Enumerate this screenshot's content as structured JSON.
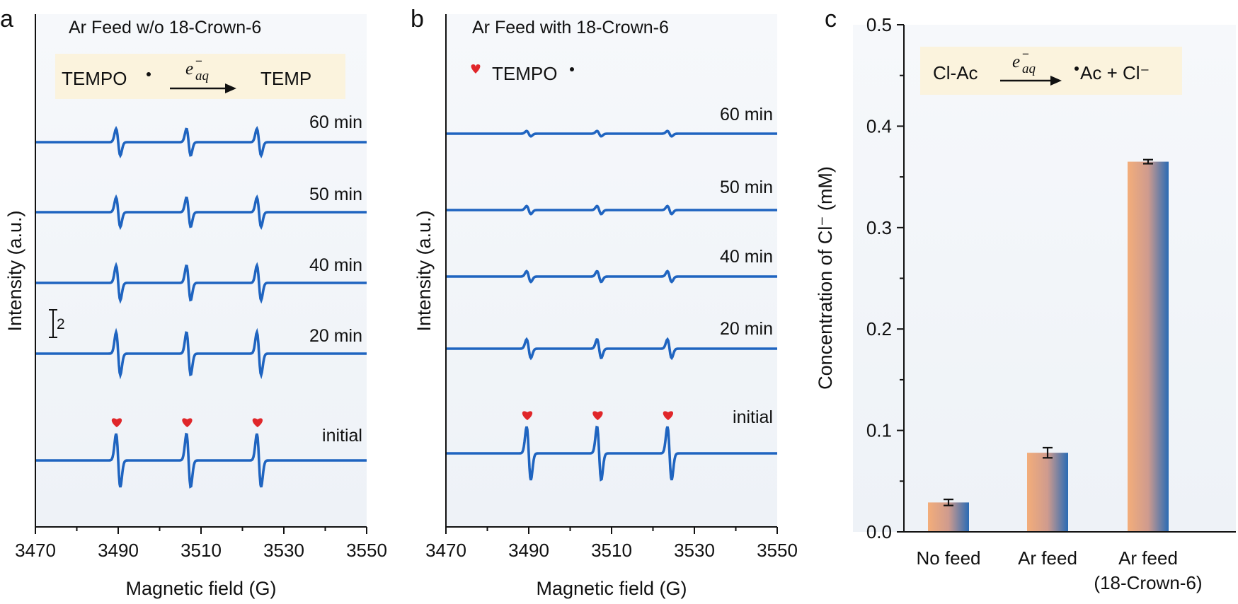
{
  "panels": {
    "a": {
      "letter": "a",
      "title": "Ar Feed  w/o 18-Crown-6",
      "reaction_left": "TEMPO",
      "reaction_arrow_top": "e",
      "reaction_arrow_sub": "aq",
      "reaction_arrow_sup": "−",
      "reaction_right": "TEMP",
      "scale_bar_label": "2",
      "ylabel": "Intensity (a.u.)",
      "xlabel": "Magnetic field (G)"
    },
    "b": {
      "letter": "b",
      "title": "Ar Feed with 18-Crown-6",
      "legend_label": "TEMPO",
      "ylabel": "Intensity (a.u.)",
      "xlabel": "Magnetic field (G)"
    },
    "c": {
      "letter": "c",
      "reaction_left": "Cl-Ac",
      "reaction_arrow_top": "e",
      "reaction_arrow_sub": "aq",
      "reaction_arrow_sup": "−",
      "reaction_right": "Ac + Cl⁻",
      "ylabel": "Concentration of Cl⁻ (mM)"
    }
  },
  "colors": {
    "line": "#1f64c0",
    "heart": "#e0262a",
    "box": "#fbf3dd",
    "bar_left": "#f3ad7a",
    "bar_right": "#2a6bb4",
    "plot_bg": "#f6f8fb"
  },
  "chart_data": [
    {
      "type": "line",
      "panel": "a",
      "x_range": [
        3470,
        3550
      ],
      "x_ticks": [
        "3470",
        "3490",
        "3510",
        "3530",
        "3550"
      ],
      "peak_fields": [
        3490,
        3507,
        3524
      ],
      "series": [
        {
          "name": "60 min",
          "amplitude": 0.5
        },
        {
          "name": "50 min",
          "amplitude": 0.55
        },
        {
          "name": "40 min",
          "amplitude": 0.65
        },
        {
          "name": "20 min",
          "amplitude": 0.8
        },
        {
          "name": "initial",
          "amplitude": 1.0
        }
      ]
    },
    {
      "type": "line",
      "panel": "b",
      "x_range": [
        3470,
        3550
      ],
      "x_ticks": [
        "3470",
        "3490",
        "3510",
        "3530",
        "3550"
      ],
      "peak_fields": [
        3490,
        3507,
        3524
      ],
      "series": [
        {
          "name": "60 min",
          "amplitude": 0.1
        },
        {
          "name": "50 min",
          "amplitude": 0.15
        },
        {
          "name": "40 min",
          "amplitude": 0.2
        },
        {
          "name": "20 min",
          "amplitude": 0.35
        },
        {
          "name": "initial",
          "amplitude": 1.0
        }
      ]
    },
    {
      "type": "bar",
      "panel": "c",
      "categories": [
        [
          "No feed"
        ],
        [
          "Ar feed"
        ],
        [
          "Ar feed",
          "(18-Crown-6)"
        ]
      ],
      "values": [
        0.029,
        0.078,
        0.365
      ],
      "errors": [
        0.003,
        0.005,
        0.002
      ],
      "ylim": [
        0,
        0.5
      ],
      "y_ticks": [
        "0.0",
        "0.1",
        "0.2",
        "0.3",
        "0.4",
        "0.5"
      ],
      "ylabel": "Concentration of Cl⁻ (mM)"
    }
  ]
}
